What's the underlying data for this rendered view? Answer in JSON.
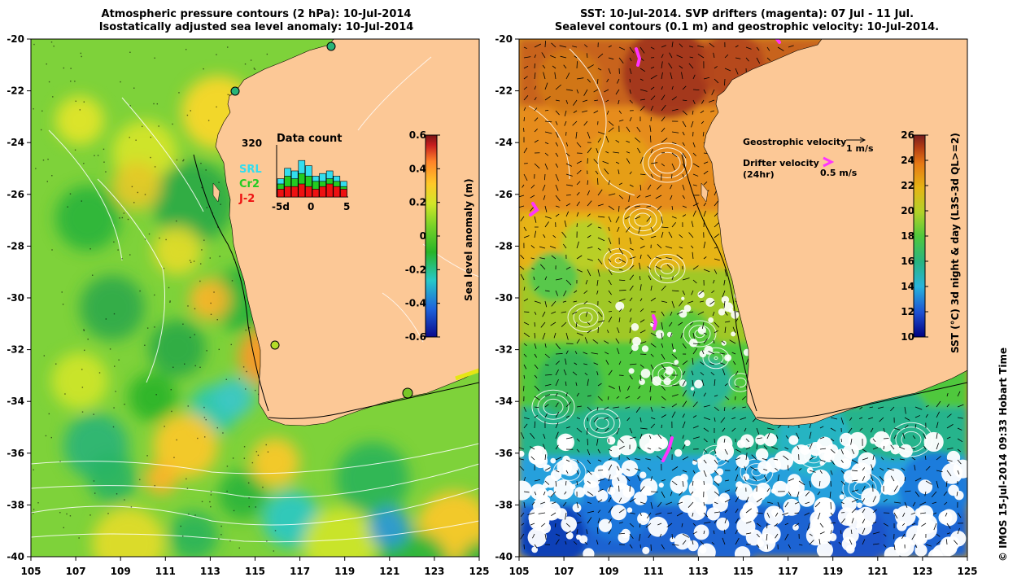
{
  "left_panel": {
    "title_line1": "Atmospheric pressure contours (2 hPa): 10-Jul-2014",
    "title_line2": "Isostatically adjusted sea level anomaly: 10-Jul-2014",
    "colorbar_label": "Sea level anomaly (m)",
    "colorbar_ticks": [
      "0.6",
      "0.4",
      "0.2",
      "0",
      "-0.2",
      "-0.4",
      "-0.6"
    ],
    "inset": {
      "count": "320",
      "title": "Data count",
      "legend": [
        {
          "label": "SRL",
          "color": "#33ddee"
        },
        {
          "label": "Cr2",
          "color": "#22cc22"
        },
        {
          "label": "J-2",
          "color": "#ee1111"
        }
      ],
      "x_ticks": [
        "-5d",
        "0",
        "5"
      ],
      "bars": [
        {
          "srl": 0.35,
          "cr2": 0.25,
          "j2": 0.15
        },
        {
          "srl": 0.55,
          "cr2": 0.4,
          "j2": 0.2
        },
        {
          "srl": 0.5,
          "cr2": 0.35,
          "j2": 0.2
        },
        {
          "srl": 0.7,
          "cr2": 0.45,
          "j2": 0.25
        },
        {
          "srl": 0.6,
          "cr2": 0.4,
          "j2": 0.2
        },
        {
          "srl": 0.4,
          "cr2": 0.3,
          "j2": 0.15
        },
        {
          "srl": 0.45,
          "cr2": 0.3,
          "j2": 0.2
        },
        {
          "srl": 0.5,
          "cr2": 0.35,
          "j2": 0.25
        },
        {
          "srl": 0.4,
          "cr2": 0.3,
          "j2": 0.2
        },
        {
          "srl": 0.3,
          "cr2": 0.2,
          "j2": 0.15
        }
      ]
    }
  },
  "right_panel": {
    "title_line1": "SST: 10-Jul-2014. SVP drifters (magenta): 07 Jul - 11 Jul.",
    "title_line2": "Sealevel contours (0.1 m) and geostrophic velocity: 10-Jul-2014.",
    "colorbar_label": "SST (°C) 3d night & day (L3S-3d QL>=2)",
    "colorbar_ticks": [
      "26",
      "24",
      "22",
      "20",
      "18",
      "16",
      "14",
      "12",
      "10"
    ],
    "velocity_legend": {
      "geo_label": "Geostrophic velocity",
      "geo_scale": "1 m/s",
      "drifter_label_1": "Drifter velocity",
      "drifter_label_2": "(24hr)",
      "drifter_scale": "0.5 m/s"
    }
  },
  "axes": {
    "lat_ticks": [
      "-20",
      "-22",
      "-24",
      "-26",
      "-28",
      "-30",
      "-32",
      "-34",
      "-36",
      "-38",
      "-40"
    ],
    "lon_ticks": [
      "105",
      "107",
      "109",
      "111",
      "113",
      "115",
      "117",
      "119",
      "121",
      "123",
      "125"
    ],
    "lon_range": [
      105,
      125
    ],
    "lat_range": [
      -20,
      -40
    ]
  },
  "credit": "© IMOS 15-Jul-2014 09:33 Hobart Time",
  "colors": {
    "land": "#fcc896",
    "sla_ramp": [
      "#0a0a8c",
      "#1e64dc",
      "#28c8c8",
      "#28b428",
      "#64c828",
      "#c8e628",
      "#ffc828",
      "#ff8228",
      "#c81e1e",
      "#781414"
    ],
    "sst_ramp": [
      "#000080",
      "#1e50d2",
      "#28b4dc",
      "#28b482",
      "#50c83c",
      "#b4d228",
      "#e6b414",
      "#e67814",
      "#b43c14",
      "#781e1e"
    ],
    "drifter": "#ff33ff"
  }
}
